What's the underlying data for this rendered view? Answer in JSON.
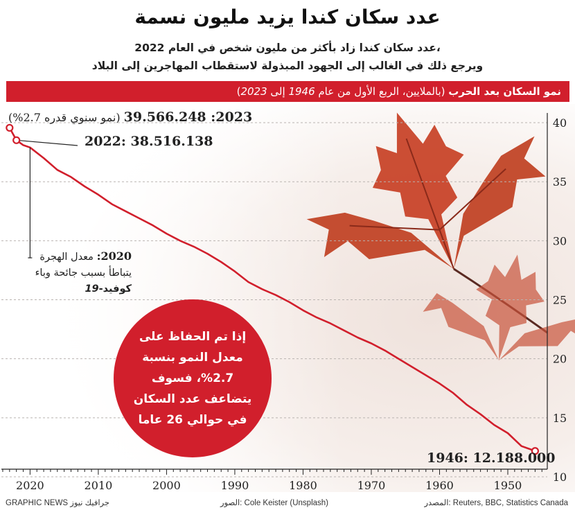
{
  "header": {
    "title": "عدد سكان كندا يزيد مليون نسمة",
    "subtitle_line1": "عدد سكان كندا زاد بأكثر من مليون شخص في العام 2022،",
    "subtitle_line2": "ويرجع ذلك في الغالب إلى الجهود المبذولة لاستقطاب المهاجرين إلى البلاد"
  },
  "banner": {
    "bold": "نمو السكان بعد الحرب",
    "text": " (بالملايين، الربع الأول من عام ",
    "year_start": "1946",
    "mid": " إلى ",
    "year_end": "2023",
    "close": ")"
  },
  "annotations": {
    "label_2023_value": "2023: 39.566.248",
    "label_2023_note": "(نمو سنوي قدره 2.7%)",
    "label_2022": "2022: 38.516.138",
    "label_1946": "1946: 12.188.000",
    "note_2020_year": "2020:",
    "note_2020_text": " معدل الهجرة يتباطأ بسبب جائحة وباء ",
    "note_2020_bold": "كوفيد-",
    "note_2020_italic": "19"
  },
  "callout": {
    "text": "إذا تم الحفاظ على معدل النمو بنسبة 2.7%، فسوف يتضاعف عدد السكان في حوالي 26 عاما"
  },
  "footer": {
    "left": "GRAPHIC NEWS جرافيك نيوز",
    "middle": "الصور: Cole Keister (Unsplash)",
    "right": "المصدر: Reuters, BBC, Statistics Canada"
  },
  "colors": {
    "line": "#d11f2c",
    "accent": "#d11f2c",
    "leaf": "#c8452a",
    "stem": "#5a2a22"
  },
  "chart_data": {
    "type": "line",
    "x_axis_reversed": true,
    "xlabel": "",
    "ylabel": "",
    "xlim": [
      1943.2,
      2024.2
    ],
    "ylim": [
      10,
      41
    ],
    "x_ticks": [
      1950,
      1960,
      1970,
      1980,
      1990,
      2000,
      2010,
      2020
    ],
    "y_ticks": [
      10,
      15,
      20,
      25,
      30,
      35,
      40
    ],
    "series": [
      {
        "x": [
          1946,
          1948,
          1950,
          1952,
          1954,
          1956,
          1958,
          1960,
          1962,
          1964,
          1966,
          1968,
          1970,
          1972,
          1974,
          1976,
          1978,
          1980,
          1982,
          1984,
          1986,
          1988,
          1990,
          1992,
          1994,
          1996,
          1998,
          2000,
          2002,
          2004,
          2006,
          2008,
          2010,
          2012,
          2014,
          2016,
          2018,
          2020,
          2021,
          2022,
          2023
        ],
        "y": [
          12.19,
          12.6,
          13.7,
          14.4,
          15.3,
          16.1,
          17.1,
          17.9,
          18.6,
          19.3,
          20.0,
          20.7,
          21.3,
          21.8,
          22.4,
          23.0,
          23.5,
          24.1,
          24.8,
          25.4,
          25.9,
          26.5,
          27.4,
          28.2,
          28.9,
          29.5,
          30.0,
          30.6,
          31.3,
          31.9,
          32.5,
          33.1,
          33.9,
          34.6,
          35.4,
          36.0,
          37.0,
          37.9,
          38.1,
          38.52,
          39.57
        ]
      }
    ],
    "highlighted_points": [
      {
        "x": 2023,
        "y": 39.566248
      },
      {
        "x": 2022,
        "y": 38.516138
      },
      {
        "x": 1946,
        "y": 12.188
      }
    ]
  }
}
